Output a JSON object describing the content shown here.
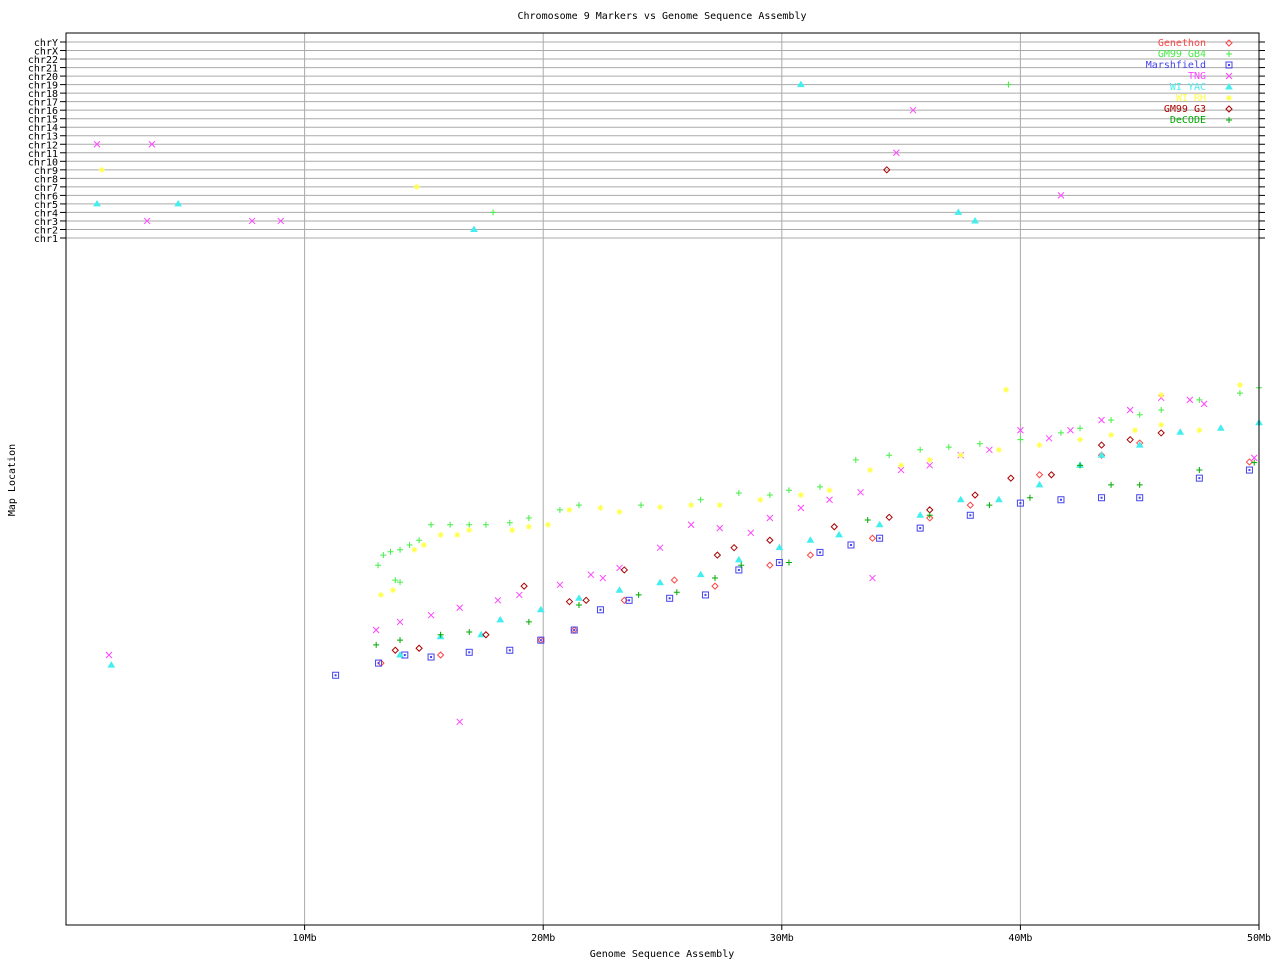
{
  "chart_data": {
    "type": "scatter",
    "title": "Chromosome 9 Markers vs Genome Sequence Assembly",
    "xlabel": "Genome Sequence Assembly",
    "ylabel": "Map Location",
    "xlim": [
      0,
      50
    ],
    "x_ticks": [
      {
        "v": 10,
        "label": "10Mb"
      },
      {
        "v": 20,
        "label": "20Mb"
      },
      {
        "v": 30,
        "label": "30Mb"
      },
      {
        "v": 40,
        "label": "40Mb"
      },
      {
        "v": 50,
        "label": "50Mb"
      }
    ],
    "ylim": [
      0,
      100
    ],
    "grid": true,
    "legend_position": "top-right",
    "chromosome_rows": [
      "chrY",
      "chrX",
      "chr22",
      "chr21",
      "chr20",
      "chr19",
      "chr18",
      "chr17",
      "chr16",
      "chr15",
      "chr14",
      "chr13",
      "chr12",
      "chr11",
      "chr10",
      "chr9",
      "chr8",
      "chr7",
      "chr6",
      "chr5",
      "chr4",
      "chr3",
      "chr2",
      "chr1"
    ],
    "series": [
      {
        "name": "Genethon",
        "color": "#ff4444",
        "marker": "diamond",
        "points": [
          [
            13.2,
            38.8
          ],
          [
            15.7,
            40.0
          ],
          [
            19.9,
            42.2
          ],
          [
            21.3,
            43.7
          ],
          [
            23.4,
            48.1
          ],
          [
            25.5,
            51.1
          ],
          [
            27.2,
            50.2
          ],
          [
            29.5,
            53.3
          ],
          [
            31.2,
            54.8
          ],
          [
            33.8,
            57.3
          ],
          [
            36.2,
            60.3
          ],
          [
            37.9,
            62.2
          ],
          [
            40.8,
            66.7
          ],
          [
            43.4,
            69.6
          ],
          [
            45.0,
            71.4
          ],
          [
            49.6,
            68.6
          ]
        ],
        "other_chr": []
      },
      {
        "name": "GM99 GB4",
        "color": "#44ee44",
        "marker": "plus",
        "points": [
          [
            13.08,
            53.3
          ],
          [
            13.3,
            54.8
          ],
          [
            13.6,
            55.3
          ],
          [
            14.0,
            55.6
          ],
          [
            14.4,
            56.3
          ],
          [
            14.8,
            57.0
          ],
          [
            15.3,
            59.3
          ],
          [
            16.1,
            59.3
          ],
          [
            16.9,
            59.3
          ],
          [
            17.6,
            59.3
          ],
          [
            18.6,
            59.6
          ],
          [
            19.4,
            60.3
          ],
          [
            20.7,
            61.5
          ],
          [
            21.5,
            62.2
          ],
          [
            24.1,
            62.2
          ],
          [
            26.6,
            63.0
          ],
          [
            28.2,
            64.0
          ],
          [
            29.5,
            63.7
          ],
          [
            30.3,
            64.4
          ],
          [
            31.6,
            64.9
          ],
          [
            33.1,
            68.9
          ],
          [
            34.5,
            69.6
          ],
          [
            35.8,
            70.4
          ],
          [
            37.0,
            70.8
          ],
          [
            38.3,
            71.3
          ],
          [
            40.0,
            71.9
          ],
          [
            41.7,
            72.9
          ],
          [
            42.5,
            73.6
          ],
          [
            43.8,
            74.8
          ],
          [
            45.0,
            75.6
          ],
          [
            45.9,
            76.3
          ],
          [
            47.5,
            77.8
          ],
          [
            49.2,
            78.8
          ],
          [
            50.0,
            79.6
          ],
          [
            13.8,
            51.1
          ],
          [
            14.0,
            50.8
          ]
        ],
        "other_chr": [
          [
            17.9,
            "chr4"
          ],
          [
            39.5,
            "chr19"
          ]
        ]
      },
      {
        "name": "Marshfield",
        "color": "#4444ee",
        "marker": "square",
        "points": [
          [
            11.3,
            37.0
          ],
          [
            13.1,
            38.8
          ],
          [
            14.2,
            40.0
          ],
          [
            15.3,
            39.7
          ],
          [
            16.9,
            40.4
          ],
          [
            18.6,
            40.7
          ],
          [
            19.9,
            42.2
          ],
          [
            21.3,
            43.7
          ],
          [
            22.4,
            46.7
          ],
          [
            23.6,
            48.1
          ],
          [
            25.3,
            48.4
          ],
          [
            26.8,
            48.9
          ],
          [
            28.2,
            52.6
          ],
          [
            29.9,
            53.7
          ],
          [
            31.6,
            55.2
          ],
          [
            32.9,
            56.3
          ],
          [
            34.1,
            57.3
          ],
          [
            35.8,
            58.8
          ],
          [
            37.9,
            60.7
          ],
          [
            40.0,
            62.5
          ],
          [
            41.7,
            63.0
          ],
          [
            43.4,
            63.3
          ],
          [
            45.0,
            63.3
          ],
          [
            47.5,
            66.2
          ],
          [
            49.6,
            67.4
          ]
        ],
        "other_chr": []
      },
      {
        "name": "TNG",
        "color": "#ff44ff",
        "marker": "cross",
        "points": [
          [
            13.0,
            43.7
          ],
          [
            14.0,
            44.9
          ],
          [
            15.3,
            45.9
          ],
          [
            16.5,
            47.0
          ],
          [
            18.1,
            48.1
          ],
          [
            19.0,
            48.9
          ],
          [
            20.7,
            50.4
          ],
          [
            22.0,
            51.9
          ],
          [
            23.2,
            52.9
          ],
          [
            24.9,
            55.9
          ],
          [
            26.2,
            59.3
          ],
          [
            27.4,
            58.8
          ],
          [
            28.7,
            58.1
          ],
          [
            29.5,
            60.3
          ],
          [
            30.8,
            61.8
          ],
          [
            32.0,
            63.0
          ],
          [
            33.3,
            64.1
          ],
          [
            35.0,
            67.4
          ],
          [
            36.2,
            68.1
          ],
          [
            37.5,
            69.6
          ],
          [
            38.7,
            70.4
          ],
          [
            40.0,
            73.3
          ],
          [
            41.2,
            72.1
          ],
          [
            42.1,
            73.3
          ],
          [
            43.4,
            74.8
          ],
          [
            44.6,
            76.3
          ],
          [
            45.9,
            78.1
          ],
          [
            47.1,
            77.8
          ],
          [
            47.7,
            77.2
          ],
          [
            49.8,
            69.2
          ],
          [
            16.5,
            30.1
          ],
          [
            1.8,
            40.0
          ],
          [
            22.5,
            51.4
          ],
          [
            33.8,
            51.4
          ]
        ],
        "other_chr": [
          [
            1.3,
            "chr12"
          ],
          [
            3.6,
            "chr12"
          ],
          [
            3.4,
            "chr3"
          ],
          [
            7.8,
            "chr3"
          ],
          [
            9.0,
            "chr3"
          ],
          [
            35.5,
            "chr16"
          ],
          [
            34.8,
            "chr11"
          ],
          [
            41.7,
            "chr6"
          ]
        ]
      },
      {
        "name": "WI YAC",
        "color": "#44eeee",
        "marker": "triangle",
        "points": [
          [
            14.0,
            40.0
          ],
          [
            15.7,
            42.7
          ],
          [
            17.4,
            43.0
          ],
          [
            18.2,
            45.2
          ],
          [
            19.9,
            46.7
          ],
          [
            21.5,
            48.4
          ],
          [
            23.2,
            49.6
          ],
          [
            24.9,
            50.7
          ],
          [
            26.6,
            51.9
          ],
          [
            28.2,
            54.1
          ],
          [
            29.9,
            55.9
          ],
          [
            31.2,
            57.0
          ],
          [
            32.4,
            57.8
          ],
          [
            34.1,
            59.3
          ],
          [
            35.8,
            60.7
          ],
          [
            37.5,
            63.0
          ],
          [
            39.1,
            63.0
          ],
          [
            40.8,
            65.2
          ],
          [
            42.5,
            68.1
          ],
          [
            43.4,
            69.6
          ],
          [
            45.0,
            71.1
          ],
          [
            46.7,
            73.0
          ],
          [
            48.4,
            73.6
          ],
          [
            50.0,
            74.4
          ],
          [
            1.9,
            38.5
          ]
        ],
        "other_chr": [
          [
            1.3,
            "chr5"
          ],
          [
            4.7,
            "chr5"
          ],
          [
            17.1,
            "chr2"
          ],
          [
            30.8,
            "chr19"
          ],
          [
            37.4,
            "chr4"
          ],
          [
            38.1,
            "chr3"
          ]
        ]
      },
      {
        "name": "WI RH",
        "color": "#ffff44",
        "marker": "star",
        "points": [
          [
            13.2,
            48.9
          ],
          [
            13.7,
            49.6
          ],
          [
            14.6,
            55.6
          ],
          [
            15.0,
            56.3
          ],
          [
            15.7,
            57.8
          ],
          [
            16.4,
            57.8
          ],
          [
            16.9,
            58.5
          ],
          [
            18.7,
            58.5
          ],
          [
            19.4,
            59.0
          ],
          [
            20.2,
            59.3
          ],
          [
            21.1,
            61.5
          ],
          [
            22.4,
            61.8
          ],
          [
            23.2,
            61.2
          ],
          [
            24.9,
            61.9
          ],
          [
            26.2,
            62.2
          ],
          [
            27.4,
            62.2
          ],
          [
            29.1,
            63.0
          ],
          [
            30.8,
            63.7
          ],
          [
            32.0,
            64.4
          ],
          [
            33.7,
            67.4
          ],
          [
            35.0,
            68.1
          ],
          [
            36.2,
            68.9
          ],
          [
            37.5,
            69.6
          ],
          [
            39.1,
            70.4
          ],
          [
            40.8,
            71.1
          ],
          [
            42.5,
            71.9
          ],
          [
            43.8,
            72.6
          ],
          [
            44.8,
            73.3
          ],
          [
            45.9,
            74.1
          ],
          [
            47.5,
            73.3
          ],
          [
            49.2,
            80.0
          ],
          [
            39.4,
            79.3
          ],
          [
            45.9,
            78.5
          ]
        ],
        "other_chr": [
          [
            1.5,
            "chr9"
          ],
          [
            14.7,
            "chr7"
          ]
        ]
      },
      {
        "name": "GM99 G3",
        "color": "#aa0000",
        "marker": "diamond",
        "points": [
          [
            13.8,
            40.7
          ],
          [
            14.8,
            41.0
          ],
          [
            17.6,
            43.0
          ],
          [
            19.2,
            50.2
          ],
          [
            21.1,
            47.9
          ],
          [
            21.8,
            48.1
          ],
          [
            23.4,
            52.6
          ],
          [
            27.3,
            54.8
          ],
          [
            28.0,
            55.9
          ],
          [
            29.5,
            57.0
          ],
          [
            32.2,
            59.0
          ],
          [
            34.5,
            60.4
          ],
          [
            36.2,
            61.5
          ],
          [
            38.1,
            63.7
          ],
          [
            39.6,
            66.2
          ],
          [
            41.3,
            66.7
          ],
          [
            43.4,
            71.1
          ],
          [
            44.6,
            71.9
          ],
          [
            45.9,
            72.9
          ]
        ],
        "other_chr": [
          [
            34.4,
            "chr9"
          ]
        ]
      },
      {
        "name": "DeCODE",
        "color": "#00aa00",
        "marker": "plus",
        "points": [
          [
            13.0,
            41.5
          ],
          [
            14.0,
            42.2
          ],
          [
            15.7,
            43.0
          ],
          [
            16.9,
            43.4
          ],
          [
            19.4,
            44.9
          ],
          [
            21.5,
            47.4
          ],
          [
            24.0,
            48.9
          ],
          [
            25.6,
            49.3
          ],
          [
            27.2,
            51.4
          ],
          [
            28.3,
            53.3
          ],
          [
            30.3,
            53.7
          ],
          [
            33.6,
            60.0
          ],
          [
            36.2,
            60.7
          ],
          [
            38.7,
            62.2
          ],
          [
            40.4,
            63.3
          ],
          [
            42.5,
            68.1
          ],
          [
            43.8,
            65.2
          ],
          [
            45.0,
            65.2
          ],
          [
            47.5,
            67.4
          ],
          [
            49.8,
            68.5
          ]
        ],
        "other_chr": []
      }
    ]
  }
}
